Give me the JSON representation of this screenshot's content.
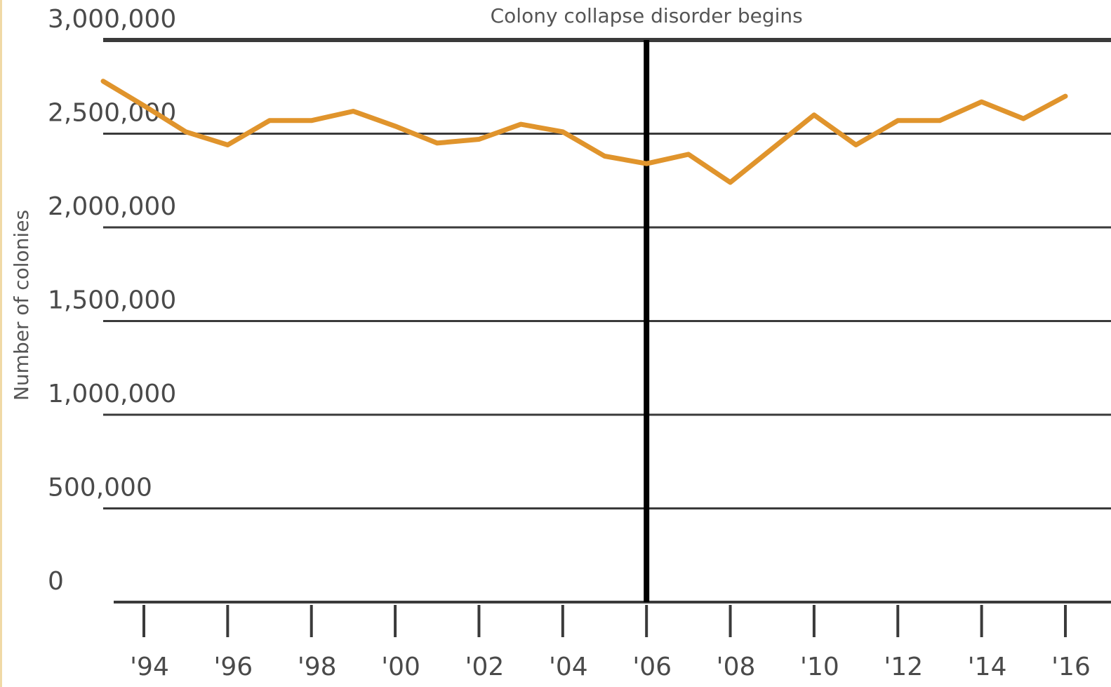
{
  "chart_data": {
    "type": "line",
    "title": "",
    "xlabel": "",
    "ylabel": "Number of colonies",
    "x_tick_labels": [
      "'94",
      "'96",
      "'98",
      "'00",
      "'02",
      "'04",
      "'06",
      "'08",
      "'10",
      "'12",
      "'14",
      "'16"
    ],
    "y_tick_labels": [
      "0",
      "500,000",
      "1,000,000",
      "1,500,000",
      "2,000,000",
      "2,500,000",
      "3,000,000"
    ],
    "y_ticks": [
      0,
      500000,
      1000000,
      1500000,
      2000000,
      2500000,
      3000000
    ],
    "x_ticks": [
      1994,
      1996,
      1998,
      2000,
      2002,
      2004,
      2006,
      2008,
      2010,
      2012,
      2014,
      2016
    ],
    "ylim": [
      0,
      3000000
    ],
    "xlim": [
      1994,
      2016
    ],
    "grid": true,
    "annotation": {
      "label": "Colony collapse disorder begins",
      "x": 2006
    },
    "series": [
      {
        "color": "#e0942c",
        "x": [
          1993,
          1994,
          1995,
          1996,
          1997,
          1998,
          1999,
          2000,
          2001,
          2002,
          2003,
          2004,
          2005,
          2006,
          2007,
          2008,
          2009,
          2010,
          2011,
          2012,
          2013,
          2014,
          2015,
          2016
        ],
        "values": [
          2780000,
          2650000,
          2510000,
          2440000,
          2570000,
          2570000,
          2620000,
          2540000,
          2450000,
          2470000,
          2550000,
          2510000,
          2380000,
          2340000,
          2390000,
          2240000,
          2420000,
          2600000,
          2440000,
          2570000,
          2570000,
          2670000,
          2580000,
          2700000
        ]
      }
    ],
    "colors": {
      "line": "#e0942c",
      "grid": "#3a3a3a",
      "annotation_line": "#000000",
      "text": "#4a4a4a"
    }
  }
}
